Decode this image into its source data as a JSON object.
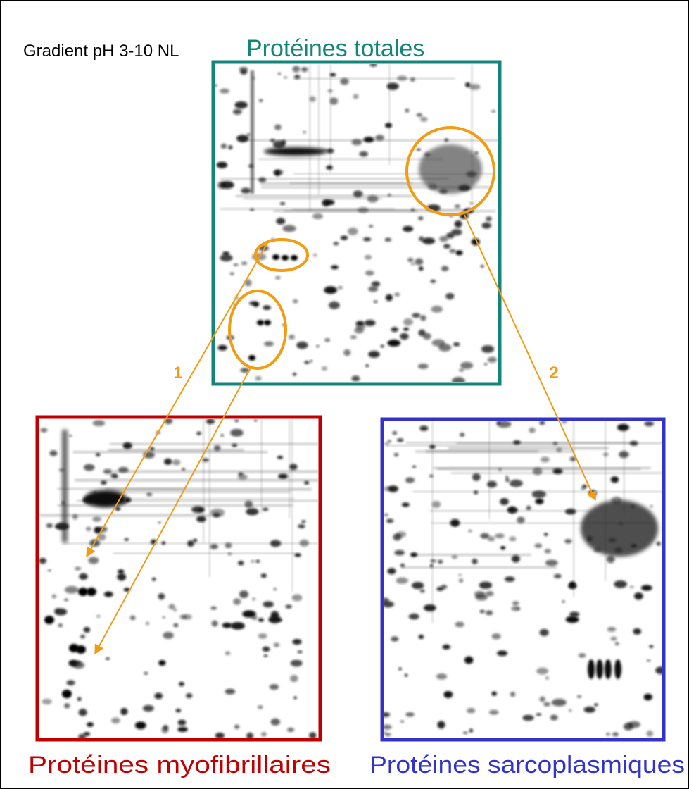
{
  "header": {
    "gradient": "Gradient pH 3-10 NL",
    "title": "Protéines totales"
  },
  "arrows": {
    "left": "1",
    "right": "2"
  },
  "panels": {
    "left": "Protéines myofibrillaires",
    "right": "Protéines sarcoplasmiques"
  }
}
